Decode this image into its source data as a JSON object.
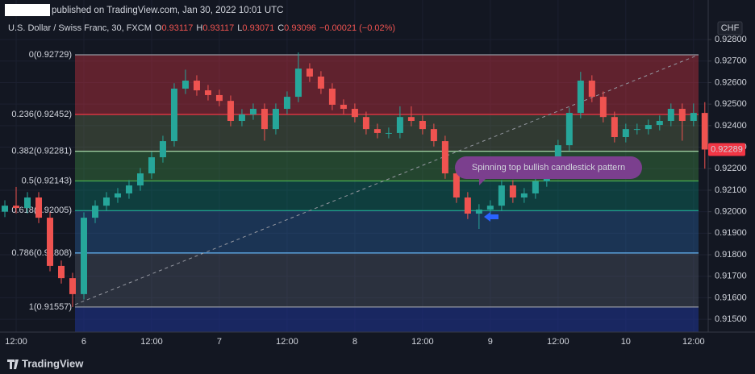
{
  "header": {
    "publisher": "published on TradingView.com, Jan 30, 2022 10:01 UTC",
    "symbol": "U.S. Dollar / Swiss Franc, 30, FXCM",
    "ohlc": [
      {
        "key": "O",
        "value": "0.93117"
      },
      {
        "key": "H",
        "value": "0.93117"
      },
      {
        "key": "L",
        "value": "0.93071"
      },
      {
        "key": "C",
        "value": "0.93096"
      }
    ],
    "change": "−0.00021 (−0.02%)"
  },
  "chart_data": {
    "type": "candlestick",
    "currency": "CHF",
    "x": [
      -2,
      0,
      2,
      4,
      6,
      8,
      10,
      12,
      14,
      16,
      18,
      20,
      22,
      24,
      26,
      28,
      30,
      32,
      34,
      36,
      38,
      40,
      42,
      44,
      46,
      48,
      50,
      52,
      54,
      56,
      58,
      60,
      62,
      64,
      66,
      68,
      70,
      72,
      74,
      76,
      78,
      80,
      82,
      84,
      86,
      88,
      90,
      92,
      94,
      96,
      98,
      100,
      102,
      104,
      106,
      108,
      110,
      112,
      114,
      116,
      118,
      120,
      122
    ],
    "open": [
      0.92,
      0.92028,
      0.92017,
      0.92066,
      0.91972,
      0.91748,
      0.91691,
      0.91617,
      0.91972,
      0.92028,
      0.92066,
      0.92085,
      0.92122,
      0.92178,
      0.92253,
      0.92328,
      0.92572,
      0.92609,
      0.92564,
      0.92542,
      0.92515,
      0.92422,
      0.92452,
      0.92478,
      0.92384,
      0.92478,
      0.92534,
      0.92665,
      0.92628,
      0.92572,
      0.92497,
      0.92478,
      0.9244,
      0.92384,
      0.92366,
      0.92366,
      0.9244,
      0.92422,
      0.92384,
      0.92328,
      0.92178,
      0.92066,
      0.91991,
      0.9201,
      0.92028,
      0.92122,
      0.92066,
      0.92085,
      0.92141,
      0.92216,
      0.92309,
      0.92459,
      0.92609,
      0.92534,
      0.9244,
      0.92347,
      0.92384,
      0.92384,
      0.92403,
      0.92422,
      0.92478,
      0.92422,
      0.92459
    ],
    "high": [
      0.92053,
      0.92115,
      0.92091,
      0.92091,
      0.91997,
      0.91773,
      0.91716,
      0.91997,
      0.92053,
      0.92091,
      0.9211,
      0.92147,
      0.92203,
      0.92278,
      0.92353,
      0.92597,
      0.9266,
      0.92634,
      0.92589,
      0.92567,
      0.9254,
      0.92477,
      0.92503,
      0.92503,
      0.92503,
      0.92559,
      0.9274,
      0.9269,
      0.92653,
      0.92597,
      0.92522,
      0.92503,
      0.92465,
      0.92409,
      0.92391,
      0.9249,
      0.9249,
      0.92447,
      0.92409,
      0.92353,
      0.92203,
      0.92091,
      0.92035,
      0.92053,
      0.92147,
      0.92147,
      0.9211,
      0.92166,
      0.92241,
      0.92334,
      0.92484,
      0.9265,
      0.92634,
      0.92559,
      0.92465,
      0.92409,
      0.92409,
      0.92428,
      0.92447,
      0.92503,
      0.92503,
      0.92503,
      0.92509
    ],
    "low": [
      0.91975,
      0.91992,
      0.91992,
      0.91947,
      0.91723,
      0.91666,
      0.91557,
      0.91592,
      0.91947,
      0.92003,
      0.92041,
      0.9206,
      0.92097,
      0.92153,
      0.92228,
      0.92303,
      0.92547,
      0.92539,
      0.92517,
      0.9249,
      0.92397,
      0.92397,
      0.92427,
      0.9233,
      0.92359,
      0.92453,
      0.92509,
      0.92603,
      0.92547,
      0.92472,
      0.92453,
      0.92415,
      0.92359,
      0.92341,
      0.92341,
      0.92341,
      0.92397,
      0.92359,
      0.92303,
      0.92153,
      0.92041,
      0.91966,
      0.9192,
      0.91985,
      0.92003,
      0.92041,
      0.92041,
      0.9206,
      0.92116,
      0.92191,
      0.92284,
      0.92434,
      0.92509,
      0.92415,
      0.92322,
      0.92322,
      0.92359,
      0.92359,
      0.92378,
      0.92397,
      0.9233,
      0.92397,
      0.922
    ],
    "close": [
      0.92028,
      0.92017,
      0.92066,
      0.91972,
      0.91748,
      0.91691,
      0.91617,
      0.91972,
      0.92028,
      0.92066,
      0.92085,
      0.92122,
      0.92178,
      0.92253,
      0.92328,
      0.92572,
      0.92609,
      0.92564,
      0.92542,
      0.92515,
      0.92422,
      0.92452,
      0.92478,
      0.92384,
      0.92478,
      0.92534,
      0.92665,
      0.92628,
      0.92572,
      0.92497,
      0.92478,
      0.9244,
      0.92384,
      0.92366,
      0.92366,
      0.9244,
      0.92422,
      0.92384,
      0.92328,
      0.92178,
      0.92066,
      0.91991,
      0.9201,
      0.92028,
      0.92122,
      0.92066,
      0.92085,
      0.92141,
      0.92216,
      0.92309,
      0.92459,
      0.92609,
      0.92534,
      0.9244,
      0.92347,
      0.92384,
      0.92384,
      0.92403,
      0.92422,
      0.92478,
      0.92422,
      0.92459,
      0.92289
    ],
    "up_color": "#26a69a",
    "down_color": "#ef5350",
    "last_price": {
      "value": 0.92289,
      "label": "0.92289"
    },
    "xlim": [
      -2.86,
      122.6
    ],
    "xticks": [
      {
        "value": 0,
        "label": "12:00"
      },
      {
        "value": 12,
        "label": "6"
      },
      {
        "value": 24,
        "label": "12:00"
      },
      {
        "value": 36,
        "label": "7"
      },
      {
        "value": 48,
        "label": "12:00"
      },
      {
        "value": 60,
        "label": "8"
      },
      {
        "value": 72,
        "label": "12:00"
      },
      {
        "value": 84,
        "label": "9"
      },
      {
        "value": 96,
        "label": "12:00"
      },
      {
        "value": 108,
        "label": "10"
      },
      {
        "value": 120,
        "label": "12:00"
      }
    ],
    "ylim": [
      0.91448,
      0.92834
    ],
    "yticks": [
      {
        "value": 0.928,
        "label": "0.92800"
      },
      {
        "value": 0.927,
        "label": "0.92700"
      },
      {
        "value": 0.926,
        "label": "0.92600"
      },
      {
        "value": 0.925,
        "label": "0.92500"
      },
      {
        "value": 0.924,
        "label": "0.92400"
      },
      {
        "value": 0.923,
        "label": "0.92300"
      },
      {
        "value": 0.922,
        "label": "0.92200"
      },
      {
        "value": 0.921,
        "label": "0.92100"
      },
      {
        "value": 0.92,
        "label": "0.92000"
      },
      {
        "value": 0.919,
        "label": "0.91900"
      },
      {
        "value": 0.918,
        "label": "0.91800"
      },
      {
        "value": 0.917,
        "label": "0.91700"
      },
      {
        "value": 0.916,
        "label": "0.91600"
      },
      {
        "value": 0.915,
        "label": "0.91500"
      }
    ],
    "fib_levels": [
      {
        "label": "0(0.92729)",
        "value": 0.92729,
        "color": "#9598a1",
        "fill": "rgba(242,54,69,0.35)"
      },
      {
        "label": "0.236(0.92452)",
        "value": 0.92452,
        "color": "#f23645",
        "fill": "rgba(120,140,90,0.3)"
      },
      {
        "label": "0.382(0.92281)",
        "value": 0.92281,
        "color": "#a5d6a7",
        "fill": "rgba(76,175,80,0.3)"
      },
      {
        "label": "0.5(0.92143)",
        "value": 0.92143,
        "color": "#4caf50",
        "fill": "rgba(8,153,129,0.3)"
      },
      {
        "label": "0.618(0.92005)",
        "value": 0.92005,
        "color": "#22ab94",
        "fill": "rgba(41,98,160,0.4)"
      },
      {
        "label": "0.786(0.91808)",
        "value": 0.91808,
        "color": "#64b5f6",
        "fill": "rgba(100,110,130,0.3)"
      },
      {
        "label": "1(0.91557)",
        "value": 0.91557,
        "color": "#9598a1",
        "fill": "rgba(30,50,140,0.6)"
      }
    ],
    "annotation": "Spinning top bullish candlestick pattern"
  },
  "footer": {
    "brand": "TradingView"
  }
}
